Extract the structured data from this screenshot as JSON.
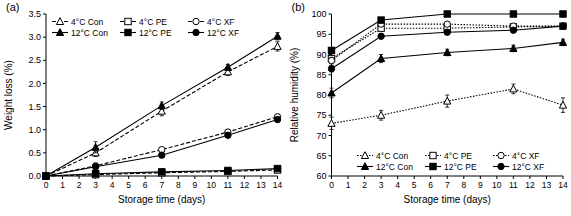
{
  "chart_data": [
    {
      "type": "line",
      "title": "(a)",
      "x_label": "Storage time (days)",
      "y_label": "Weight loss (%)",
      "x": [
        0,
        3,
        7,
        11,
        14
      ],
      "xlim": [
        0,
        14
      ],
      "xticks": [
        0,
        1,
        2,
        3,
        4,
        5,
        6,
        7,
        8,
        9,
        10,
        11,
        12,
        13,
        14
      ],
      "ylim": [
        0,
        3.5
      ],
      "yticks": [
        {
          "value": 0,
          "label": "0.0"
        },
        0.5,
        {
          "value": 1,
          "label": "1.0"
        },
        1.5,
        {
          "value": 2,
          "label": "2.0"
        },
        2.5,
        {
          "value": 3,
          "label": "3.0"
        },
        3.5
      ],
      "legend": "upper left",
      "grid": false,
      "series": [
        {
          "name": "4°C Con",
          "color": "#000000",
          "marker": "triangle-open",
          "line_style": "dashed",
          "values": [
            0,
            0.5,
            1.4,
            2.25,
            2.8
          ],
          "errors": [
            0,
            0.08,
            0.1,
            0.08,
            0.1
          ]
        },
        {
          "name": "4°C PE",
          "color": "#000000",
          "marker": "square-open",
          "line_style": "dashed",
          "values": [
            0,
            0.03,
            0.07,
            0.1,
            0.13
          ],
          "errors": [
            0,
            0.01,
            0.01,
            0.01,
            0.02
          ]
        },
        {
          "name": "4°C XF",
          "color": "#000000",
          "marker": "circle-open",
          "line_style": "dashed",
          "values": [
            0,
            0.22,
            0.57,
            0.95,
            1.28
          ],
          "errors": [
            0,
            0.03,
            0.04,
            0.05,
            0.05
          ]
        },
        {
          "name": "12°C Con",
          "color": "#000000",
          "marker": "triangle",
          "line_style": "solid",
          "values": [
            0,
            0.62,
            1.52,
            2.35,
            3.02
          ],
          "errors": [
            0,
            0.12,
            0.08,
            0.06,
            0.08
          ]
        },
        {
          "name": "12°C PE",
          "color": "#000000",
          "marker": "square",
          "line_style": "solid",
          "values": [
            0,
            0.05,
            0.09,
            0.12,
            0.16
          ],
          "errors": [
            0,
            0.01,
            0.01,
            0.01,
            0.02
          ]
        },
        {
          "name": "12°C XF",
          "color": "#000000",
          "marker": "circle",
          "line_style": "solid",
          "values": [
            0,
            0.2,
            0.45,
            0.88,
            1.22
          ],
          "errors": [
            0,
            0.03,
            0.04,
            0.04,
            0.05
          ]
        }
      ]
    },
    {
      "type": "line",
      "title": "(b)",
      "x_label": "Storage time (days)",
      "y_label": "Relative humidity (%)",
      "x": [
        0,
        3,
        7,
        11,
        14
      ],
      "xlim": [
        0,
        14
      ],
      "xticks": [
        0,
        1,
        2,
        3,
        4,
        5,
        6,
        7,
        8,
        9,
        10,
        11,
        12,
        13,
        14
      ],
      "ylim": [
        60,
        100
      ],
      "yticks": [
        60,
        65,
        70,
        75,
        80,
        85,
        90,
        95,
        100
      ],
      "legend": "lower right",
      "grid": false,
      "series": [
        {
          "name": "4°C Con",
          "color": "#000000",
          "marker": "triangle-open",
          "line_style": "dotted",
          "values": [
            73,
            75,
            78.5,
            81.5,
            77.5
          ],
          "errors": [
            1.5,
            1.2,
            1.5,
            1.2,
            1.8
          ]
        },
        {
          "name": "4°C PE",
          "color": "#000000",
          "marker": "square-open",
          "line_style": "dotted",
          "values": [
            89,
            96.5,
            96.5,
            96.8,
            97
          ],
          "errors": [
            0.8,
            0.5,
            0.4,
            0.4,
            0.4
          ]
        },
        {
          "name": "4°C XF",
          "color": "#000000",
          "marker": "circle-open",
          "line_style": "dotted",
          "values": [
            88.5,
            97.5,
            97.5,
            97,
            97
          ],
          "errors": [
            0.8,
            0.4,
            0.4,
            0.4,
            0.4
          ]
        },
        {
          "name": "12°C Con",
          "color": "#000000",
          "marker": "triangle",
          "line_style": "solid",
          "values": [
            80.5,
            89,
            90.5,
            91.5,
            93
          ],
          "errors": [
            1.2,
            1,
            0.8,
            0.8,
            0.8
          ]
        },
        {
          "name": "12°C PE",
          "color": "#000000",
          "marker": "square",
          "line_style": "solid",
          "values": [
            91,
            98.5,
            100,
            100,
            100
          ],
          "errors": [
            0.6,
            0.3,
            0.2,
            0.2,
            0.2
          ]
        },
        {
          "name": "12°C XF",
          "color": "#000000",
          "marker": "circle",
          "line_style": "solid",
          "values": [
            86.5,
            94.5,
            95.5,
            96,
            97
          ],
          "errors": [
            0.8,
            0.5,
            0.4,
            0.4,
            0.4
          ]
        }
      ]
    }
  ]
}
